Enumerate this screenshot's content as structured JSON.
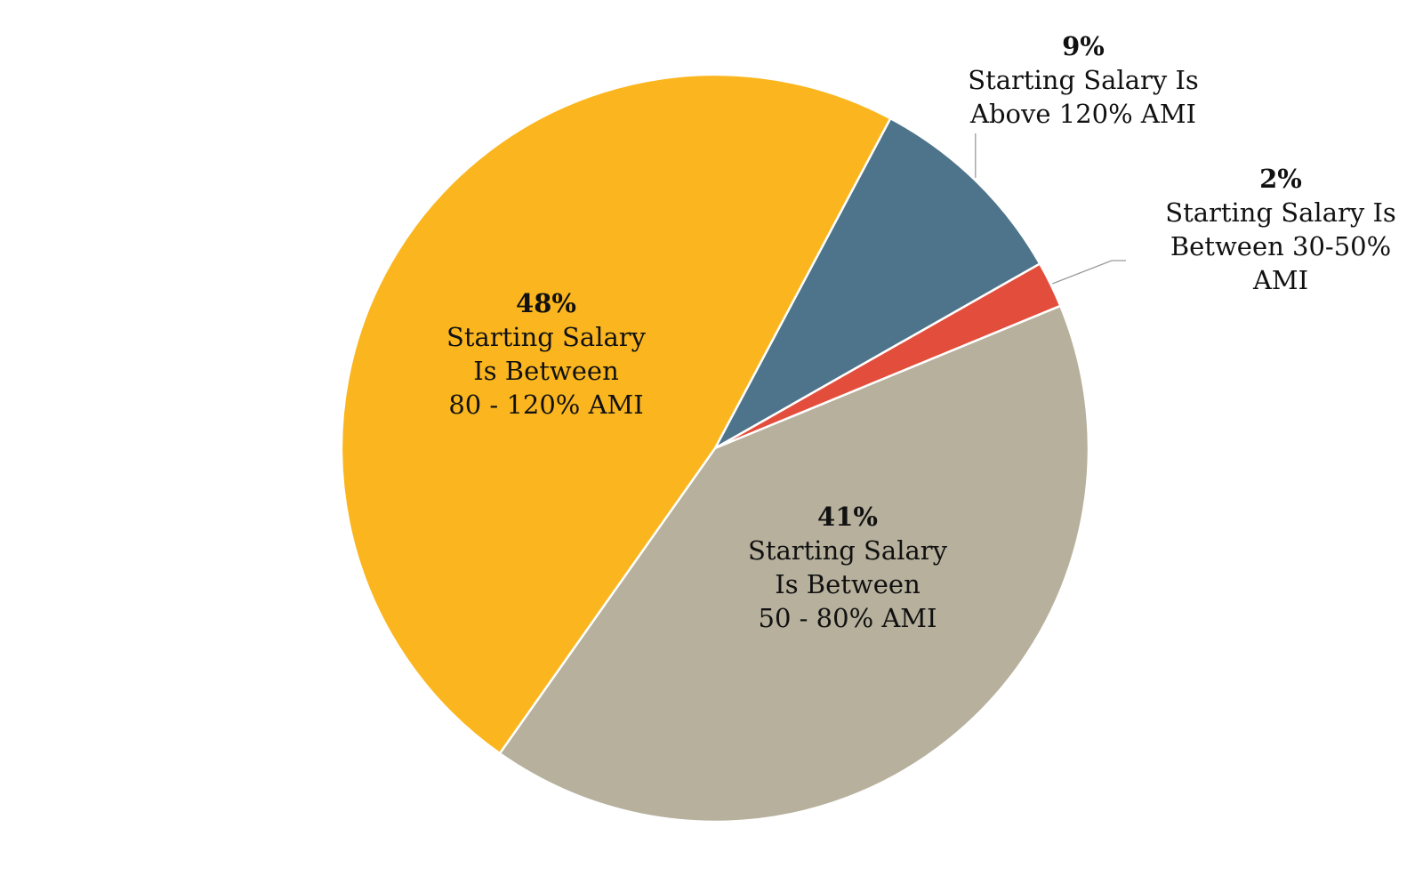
{
  "chart_data": {
    "type": "pie",
    "title": "",
    "slices": [
      {
        "value": 9,
        "percent_label": "9%",
        "label_lines": [
          "Starting Salary Is",
          "Above 120% AMI"
        ],
        "color": "#4e748b",
        "label_placement": "outside"
      },
      {
        "value": 2,
        "percent_label": "2%",
        "label_lines": [
          "Starting Salary Is",
          "Between 30-50%",
          "AMI"
        ],
        "color": "#e34e3c",
        "label_placement": "outside"
      },
      {
        "value": 41,
        "percent_label": "41%",
        "label_lines": [
          "Starting Salary",
          "Is Between",
          "50 - 80% AMI"
        ],
        "color": "#b6b09c",
        "label_placement": "inside"
      },
      {
        "value": 48,
        "percent_label": "48%",
        "label_lines": [
          "Starting Salary",
          "Is Between",
          "80 - 120% AMI"
        ],
        "color": "#fbb61f",
        "label_placement": "inside"
      }
    ],
    "start_angle_deg": 28,
    "direction": "clockwise",
    "legend": "none"
  }
}
